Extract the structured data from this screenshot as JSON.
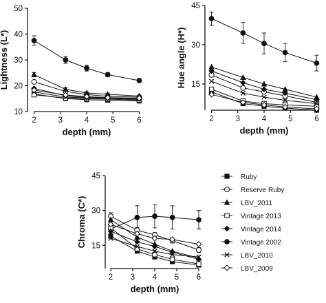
{
  "legend": [
    {
      "label": "Ruby",
      "marker": "filled-square"
    },
    {
      "label": "Reserve Ruby",
      "marker": "open-circle"
    },
    {
      "label": "LBV_2011",
      "marker": "filled-triangle"
    },
    {
      "label": "Vintage 2013",
      "marker": "open-square"
    },
    {
      "label": "Vintage 2014",
      "marker": "filled-diamond"
    },
    {
      "label": "Vintage 2002",
      "marker": "filled-circle"
    },
    {
      "label": "LBV_2010",
      "marker": "x-cross"
    },
    {
      "label": "LBV_2009",
      "marker": "open-diamond"
    }
  ],
  "chart_data": [
    {
      "type": "line",
      "panel": "lightness",
      "xlabel": "depth (mm)",
      "ylabel": "Lightness (L*)",
      "x": [
        2,
        3.2,
        4,
        4.8,
        6
      ],
      "xticks": [
        2,
        3,
        4,
        5,
        6
      ],
      "yticks": [
        10,
        20,
        30,
        40,
        50
      ],
      "xlim": [
        1.75,
        6.25
      ],
      "ylim": [
        10,
        50
      ],
      "series": [
        {
          "name": "Vintage 2002",
          "values": [
            37.5,
            30.0,
            26.8,
            24.3,
            22.0
          ],
          "err": [
            1.8,
            1.3,
            1.1,
            0.8,
            0.7
          ]
        },
        {
          "name": "Ruby",
          "values": [
            16.8,
            15.0,
            14.6,
            14.4,
            14.1
          ]
        },
        {
          "name": "Reserve Ruby",
          "values": [
            21.5,
            17.8,
            16.6,
            15.9,
            15.6
          ]
        },
        {
          "name": "LBV_2011",
          "values": [
            24.3,
            18.6,
            17.2,
            16.7,
            16.0
          ],
          "err": [
            0.8,
            0.6,
            0.5,
            0.4,
            0.4
          ]
        },
        {
          "name": "Vintage 2013",
          "values": [
            16.5,
            15.2,
            15.0,
            14.8,
            14.4
          ]
        },
        {
          "name": "Vintage 2014",
          "values": [
            19.0,
            16.1,
            15.5,
            15.2,
            14.9
          ]
        },
        {
          "name": "LBV_2010",
          "values": [
            17.6,
            15.6,
            15.3,
            15.1,
            14.7
          ]
        },
        {
          "name": "LBV_2009",
          "values": [
            18.3,
            16.4,
            15.8,
            15.4,
            15.2
          ]
        }
      ]
    },
    {
      "type": "line",
      "panel": "hue",
      "xlabel": "depth (mm)",
      "ylabel": "Hue angle (H*)",
      "x": [
        2,
        3.2,
        4,
        4.8,
        6
      ],
      "xticks": [
        2,
        3,
        4,
        5,
        6
      ],
      "yticks": [
        15,
        30,
        45
      ],
      "xlim": [
        1.75,
        6.25
      ],
      "ylim": [
        5,
        45
      ],
      "series": [
        {
          "name": "Vintage 2002",
          "values": [
            40.0,
            34.5,
            30.5,
            27.0,
            23.0
          ],
          "err": [
            2.5,
            4.0,
            4.0,
            3.5,
            3.0
          ]
        },
        {
          "name": "Ruby",
          "values": [
            12.0,
            7.5,
            6.5,
            5.8,
            5.0
          ]
        },
        {
          "name": "Reserve Ruby",
          "values": [
            18.5,
            13.5,
            12.0,
            10.5,
            8.0
          ],
          "err": [
            0.8,
            0.8,
            0.6,
            0.6,
            0.6
          ]
        },
        {
          "name": "LBV_2011",
          "values": [
            21.5,
            17.5,
            15.0,
            13.0,
            10.0
          ]
        },
        {
          "name": "Vintage 2013",
          "values": [
            13.0,
            8.5,
            7.5,
            7.0,
            6.5
          ],
          "err": [
            0.8,
            0.7,
            0.6,
            0.6,
            0.6
          ]
        },
        {
          "name": "Vintage 2014",
          "values": [
            20.0,
            15.5,
            13.0,
            11.5,
            9.0
          ]
        },
        {
          "name": "LBV_2010",
          "values": [
            16.0,
            11.5,
            10.0,
            8.8,
            7.5
          ]
        },
        {
          "name": "LBV_2009",
          "values": [
            11.0,
            8.0,
            7.0,
            6.2,
            5.5
          ]
        }
      ]
    },
    {
      "type": "line",
      "panel": "chroma",
      "xlabel": "depth (mm)",
      "ylabel": "Chroma (C*)",
      "x": [
        2,
        3.2,
        4,
        4.8,
        6
      ],
      "xticks": [
        2,
        3,
        4,
        5,
        6
      ],
      "yticks": [
        15,
        30,
        45
      ],
      "xlim": [
        1.75,
        6.25
      ],
      "ylim": [
        5,
        45
      ],
      "series": [
        {
          "name": "Vintage 2002",
          "values": [
            22.0,
            27.0,
            27.5,
            27.0,
            26.0
          ],
          "err": [
            2.0,
            5.0,
            5.0,
            5.0,
            4.0
          ]
        },
        {
          "name": "Ruby",
          "values": [
            19.0,
            12.5,
            10.0,
            8.0,
            6.5
          ]
        },
        {
          "name": "Reserve Ruby",
          "values": [
            27.5,
            21.5,
            19.5,
            17.0,
            13.0
          ],
          "err": [
            1.5,
            1.2,
            1.0,
            1.0,
            1.0
          ]
        },
        {
          "name": "LBV_2011",
          "values": [
            26.0,
            18.5,
            15.5,
            12.5,
            9.5
          ]
        },
        {
          "name": "Vintage 2013",
          "values": [
            22.5,
            13.5,
            11.0,
            9.0,
            7.0
          ]
        },
        {
          "name": "Vintage 2014",
          "values": [
            21.0,
            16.5,
            14.5,
            12.0,
            9.0
          ]
        },
        {
          "name": "LBV_2010",
          "values": [
            18.0,
            14.5,
            12.5,
            11.0,
            10.0
          ]
        },
        {
          "name": "LBV_2009",
          "values": [
            24.0,
            20.0,
            18.0,
            17.5,
            15.5
          ]
        }
      ]
    }
  ]
}
